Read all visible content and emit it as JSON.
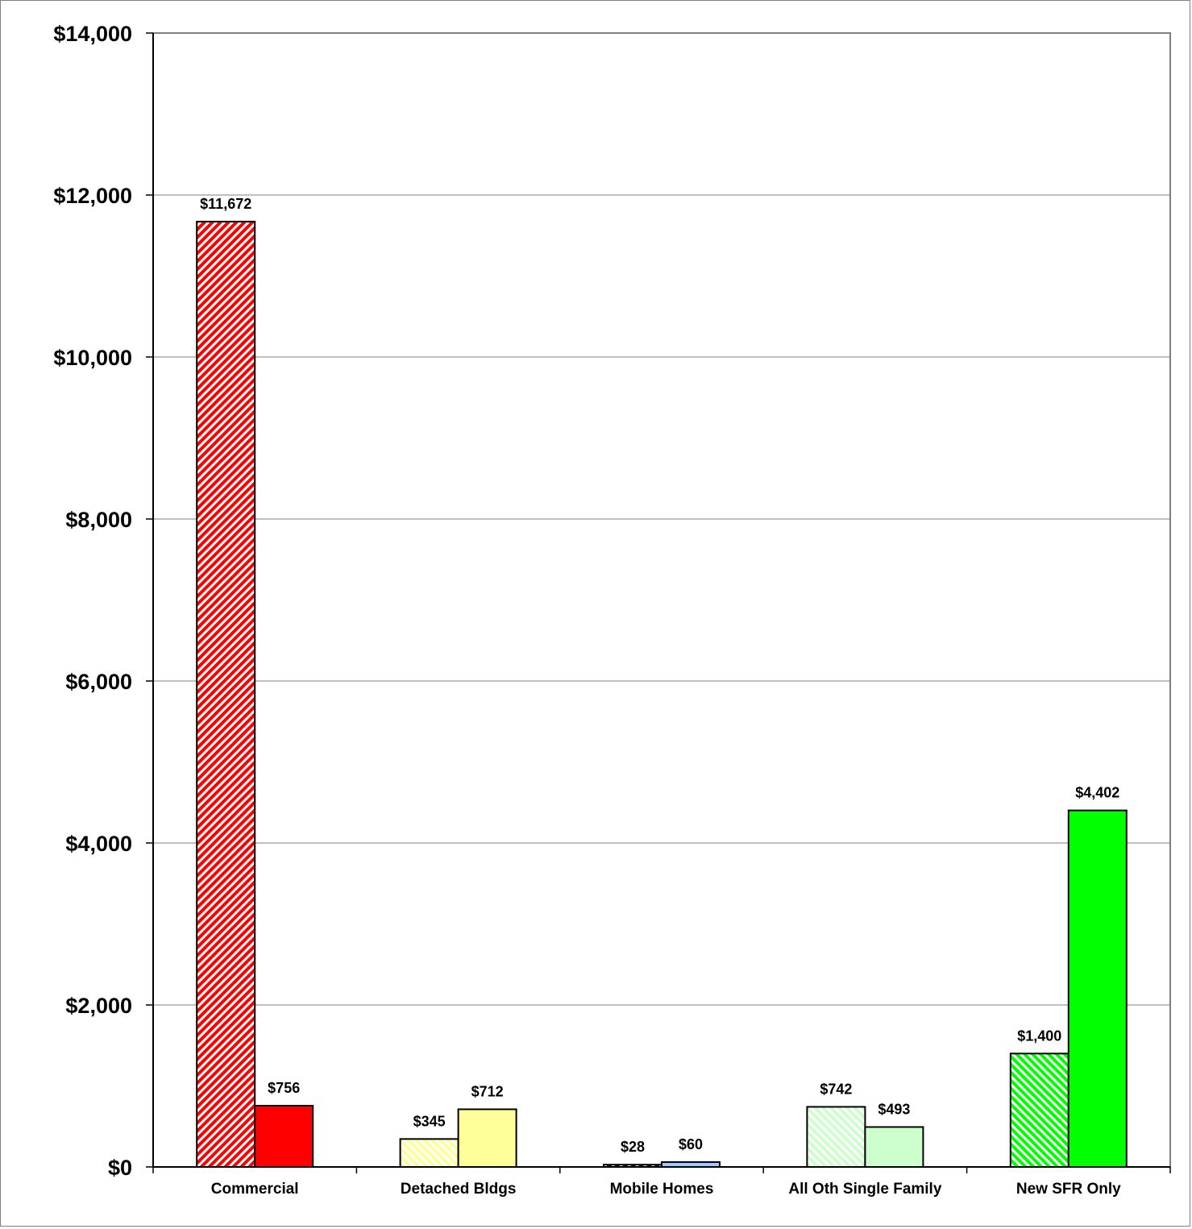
{
  "chart_data": {
    "type": "bar",
    "title": "",
    "xlabel": "",
    "ylabel": "",
    "ylim": [
      0,
      14000
    ],
    "yticks": [
      0,
      2000,
      4000,
      6000,
      8000,
      10000,
      12000,
      14000
    ],
    "ytick_labels": [
      "$0",
      "$2,000",
      "$4,000",
      "$6,000",
      "$8,000",
      "$10,000",
      "$12,000",
      "$14,000"
    ],
    "grid": "horizontal major gridlines",
    "legend": "none",
    "categories": [
      "Commercial",
      "Detached Bldgs",
      "Mobile Homes",
      "All Oth Single Family",
      "New SFR Only"
    ],
    "series": [
      {
        "values": [
          11672,
          345,
          28,
          742,
          1400
        ],
        "labels": [
          "$11,672",
          "$345",
          "$28",
          "$742",
          "$1,400"
        ],
        "fill_pattern": "diagonal-hatch",
        "colors": [
          "#ff0000",
          "#ffff99",
          "#1a1a1a",
          "#ccffcc",
          "#00ff00"
        ]
      },
      {
        "values": [
          756,
          712,
          60,
          493,
          4402
        ],
        "labels": [
          "$756",
          "$712",
          "$60",
          "$493",
          "$4,402"
        ],
        "fill_pattern": "solid",
        "colors": [
          "#ff0000",
          "#ffff99",
          "#99ccff",
          "#ccffcc",
          "#00ff00"
        ]
      }
    ]
  }
}
